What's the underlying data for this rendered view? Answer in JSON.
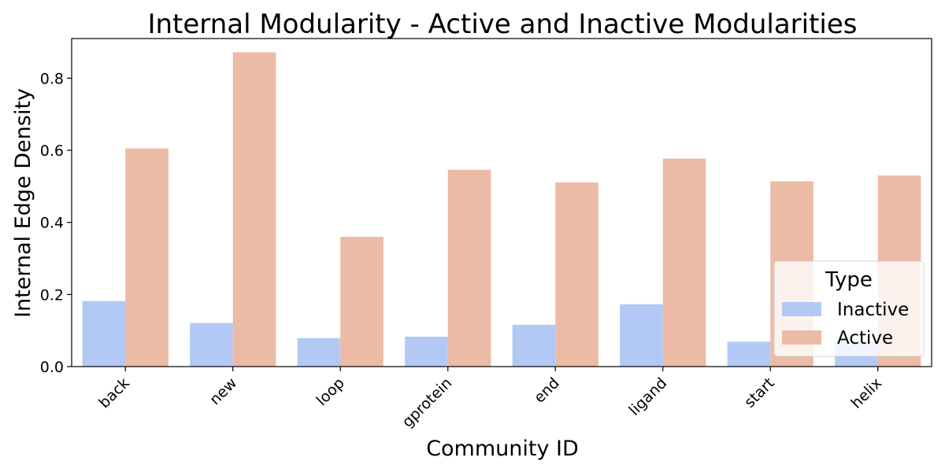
{
  "chart_data": {
    "type": "bar",
    "title": "Internal Modularity - Active and Inactive Modularities",
    "xlabel": "Community ID",
    "ylabel": "Internal Edge Density",
    "categories": [
      "back",
      "new",
      "loop",
      "gprotein",
      "end",
      "ligand",
      "start",
      "helix"
    ],
    "series": [
      {
        "name": "Inactive",
        "color": "#b3c9f5",
        "values": [
          0.182,
          0.121,
          0.079,
          0.083,
          0.116,
          0.173,
          0.069,
          0.07
        ]
      },
      {
        "name": "Active",
        "color": "#ecbba5",
        "values": [
          0.605,
          0.872,
          0.36,
          0.546,
          0.511,
          0.577,
          0.514,
          0.53
        ]
      }
    ],
    "ylim": [
      0,
      0.91
    ],
    "yticks": [
      "0.0",
      "0.2",
      "0.4",
      "0.6",
      "0.8"
    ],
    "legend": {
      "title": "Type",
      "position": "lower-right"
    },
    "grid": false
  }
}
